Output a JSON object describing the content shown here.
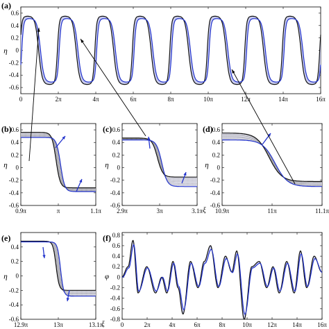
{
  "chart_data": [
    {
      "panel": "(a)",
      "type": "line",
      "ylabel": "η",
      "xlabel": "",
      "xlim_pi": [
        0,
        16
      ],
      "ylim": [
        -0.7,
        0.7
      ],
      "xticks": [
        "0",
        "2π",
        "4π",
        "6π",
        "8π",
        "10π",
        "12π",
        "14π",
        "16π"
      ],
      "yticks": [
        "0.6",
        "0.4",
        "0.2",
        "0",
        "-0.2",
        "-0.4",
        "-0.6"
      ],
      "description_values": {
        "amplitude_min": -0.55,
        "amplitude_max": 0.55,
        "period_pi": 2
      }
    },
    {
      "panel": "(b)",
      "type": "line",
      "ylabel": "η",
      "xlim_pi": [
        0.9,
        1.1
      ],
      "ylim": [
        -0.6,
        0.7
      ],
      "xticks": [
        "0.9π",
        "π",
        "1.1π"
      ],
      "yticks": [
        "0.6",
        "0.4",
        "0.2",
        "0",
        "-0.2",
        "-0.4",
        "-0.6"
      ],
      "values": {
        "left_top": 0.56,
        "left_bottom": 0.48,
        "right_top": -0.32,
        "right_bottom": -0.38
      }
    },
    {
      "panel": "(c)",
      "type": "line",
      "ylabel": "η",
      "xlabel": "ξ",
      "xlim_pi": [
        2.9,
        3.1
      ],
      "ylim": [
        -0.6,
        0.7
      ],
      "xticks": [
        "2.9π",
        "3π",
        "3.1π"
      ],
      "yticks": [
        "0.6",
        "0.4",
        "0.2",
        "0",
        "-0.2",
        "-0.4",
        "-0.6"
      ],
      "values": {
        "left_top": 0.47,
        "left_bottom": 0.44,
        "right_top": -0.15,
        "right_bottom": -0.3
      }
    },
    {
      "panel": "(d)",
      "type": "line",
      "ylabel": "η",
      "xlim_pi": [
        10.9,
        11.1
      ],
      "ylim": [
        -0.6,
        0.7
      ],
      "xticks": [
        "10.9π",
        "11π",
        "11.1π"
      ],
      "yticks": [
        "0.6",
        "0.4",
        "0.2",
        "0",
        "-0.2",
        "-0.4",
        "-0.6"
      ],
      "values": {
        "left_top": 0.55,
        "left_bottom": 0.44,
        "right_top": -0.22,
        "right_bottom": -0.3
      }
    },
    {
      "panel": "(e)",
      "type": "line",
      "ylabel": "η",
      "xlabel": "ξ",
      "xlim_pi": [
        12.9,
        13.1
      ],
      "ylim": [
        -0.6,
        0.6
      ],
      "xticks": [
        "12.9π",
        "13π",
        "13.1π"
      ],
      "yticks": [
        "0.4",
        "0.2",
        "0",
        "-0.2",
        "-0.4",
        "-0.6"
      ],
      "values": {
        "left_top": 0.48,
        "left_bottom": 0.47,
        "right_top": -0.2,
        "right_bottom": -0.28
      }
    },
    {
      "panel": "(f)",
      "type": "line",
      "ylabel": "φ",
      "xlim_pi": [
        0,
        16
      ],
      "ylim": [
        -0.8,
        0.85
      ],
      "xticks": [
        "0",
        "2π",
        "4π",
        "6π",
        "8π",
        "10π",
        "12π",
        "14π",
        "16π"
      ],
      "yticks": [
        "0.8",
        "0.6",
        "0.4",
        "0.2",
        "0",
        "-0.2",
        "-0.4",
        "-0.6",
        "-0.8"
      ],
      "peaks": [
        {
          "x_pi": 0.0,
          "y": 0.0
        },
        {
          "x_pi": 0.5,
          "y": 0.2
        },
        {
          "x_pi": 0.9,
          "y": 0.7
        },
        {
          "x_pi": 1.3,
          "y": -0.3
        },
        {
          "x_pi": 2.0,
          "y": 0.2
        },
        {
          "x_pi": 2.7,
          "y": -0.3
        },
        {
          "x_pi": 3.2,
          "y": 0.0
        },
        {
          "x_pi": 3.6,
          "y": -0.3
        },
        {
          "x_pi": 4.1,
          "y": 0.3
        },
        {
          "x_pi": 4.5,
          "y": -0.2
        },
        {
          "x_pi": 4.9,
          "y": -0.7
        },
        {
          "x_pi": 5.5,
          "y": 0.3
        },
        {
          "x_pi": 6.1,
          "y": -0.2
        },
        {
          "x_pi": 6.6,
          "y": 0.3
        },
        {
          "x_pi": 7.1,
          "y": 0.6
        },
        {
          "x_pi": 7.7,
          "y": -0.2
        },
        {
          "x_pi": 8.3,
          "y": 0.4
        },
        {
          "x_pi": 8.8,
          "y": 0.1
        },
        {
          "x_pi": 9.2,
          "y": 0.5
        },
        {
          "x_pi": 9.8,
          "y": -0.8
        },
        {
          "x_pi": 10.4,
          "y": 0.2
        },
        {
          "x_pi": 11.0,
          "y": 0.3
        },
        {
          "x_pi": 11.6,
          "y": -0.2
        },
        {
          "x_pi": 12.1,
          "y": 0.2
        },
        {
          "x_pi": 12.6,
          "y": -0.3
        },
        {
          "x_pi": 13.2,
          "y": 0.3
        },
        {
          "x_pi": 13.8,
          "y": -0.3
        },
        {
          "x_pi": 14.3,
          "y": 0.5
        },
        {
          "x_pi": 14.8,
          "y": -0.2
        },
        {
          "x_pi": 15.4,
          "y": 0.4
        },
        {
          "x_pi": 16.0,
          "y": 0.1
        }
      ]
    }
  ],
  "colors": {
    "blue": "#2233cc",
    "band": "#c9ccef",
    "black": "#111111"
  }
}
